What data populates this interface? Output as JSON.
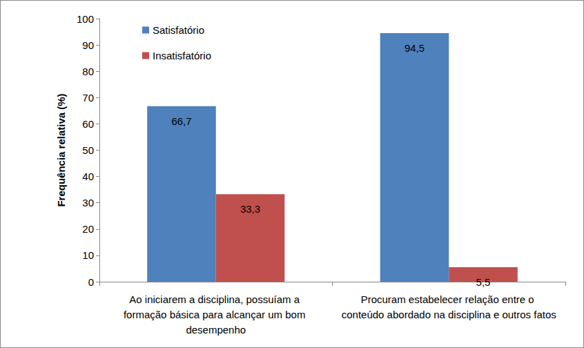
{
  "chart_data": {
    "type": "bar",
    "y_label": "Frequência relativa (%)",
    "categories": [
      "Ao iniciarem a disciplina, possuíam a formação básica para alcançar um bom desempenho",
      "Procuram estabelecer relação entre o conteúdo abordado na disciplina e outros fatos"
    ],
    "series": [
      {
        "name": "Satisfatório",
        "color": "#4f81bd",
        "values": [
          66.7,
          94.5
        ],
        "value_labels": [
          "66,7",
          "94,5"
        ]
      },
      {
        "name": "Insatisfatório",
        "color": "#c0504d",
        "values": [
          33.3,
          5.5
        ],
        "value_labels": [
          "33,3",
          "5,5"
        ]
      }
    ],
    "ylim": [
      0,
      100
    ],
    "yticks": [
      0,
      10,
      20,
      30,
      40,
      50,
      60,
      70,
      80,
      90,
      100
    ],
    "grid": false,
    "legend": "upper left",
    "data_labels": true
  }
}
